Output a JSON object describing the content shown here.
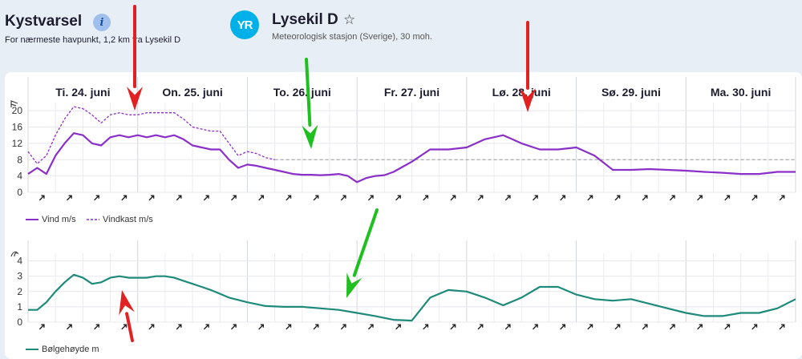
{
  "header": {
    "title": "Kystvarsel",
    "subtitle": "For nærmeste havpunkt, 1,2 km fra Lysekil D",
    "station_name": "Lysekil D",
    "station_desc": "Meteorologisk stasjon (Sverige), 30 moh.",
    "logo_text": "YR",
    "info_icon": "info-icon",
    "star_icon": "star-icon"
  },
  "days": [
    "Ti. 24. juni",
    "On. 25. juni",
    "To. 26. juni",
    "Fr. 27. juni",
    "Lø. 28. juni",
    "Sø. 29. juni",
    "Ma. 30. juni"
  ],
  "chart_data": [
    {
      "type": "line",
      "unit_icon": "wind-flag-icon",
      "ylim": [
        0,
        22
      ],
      "y_ticks": [
        0,
        4,
        8,
        12,
        16,
        20
      ],
      "grid": true,
      "legend_position": "bottom-left",
      "reference_line": 8,
      "x_range_hours": [
        0,
        168
      ],
      "series": [
        {
          "name": "Vind m/s",
          "color": "#8b2fc9",
          "style": "solid",
          "x": [
            0,
            2,
            4,
            6,
            8,
            10,
            12,
            14,
            16,
            18,
            20,
            22,
            24,
            26,
            28,
            30,
            32,
            34,
            36,
            38,
            40,
            42,
            44,
            46,
            48,
            50,
            52,
            54,
            56,
            58,
            60,
            62,
            64,
            66,
            68,
            70,
            72,
            74,
            76,
            78,
            80,
            84,
            88,
            92,
            96,
            100,
            104,
            108,
            112,
            116,
            120,
            124,
            128,
            132,
            136,
            140,
            144,
            148,
            152,
            156,
            160,
            164,
            168
          ],
          "y": [
            4.5,
            6,
            4.5,
            9,
            12,
            14.5,
            14,
            12,
            11.5,
            13.5,
            14,
            13.5,
            14,
            13.5,
            14,
            13.5,
            14,
            13,
            11.5,
            11,
            10.5,
            10.5,
            8,
            6,
            6.8,
            6.5,
            6,
            5.5,
            5,
            4.5,
            4.3,
            4.3,
            4.2,
            4.3,
            4.5,
            4,
            2.5,
            3.5,
            4,
            4.2,
            5,
            7.5,
            10.5,
            10.5,
            11,
            13,
            14,
            12,
            10.5,
            10.5,
            11,
            9,
            5.5,
            5.5,
            5.7,
            5.5,
            5.3,
            5,
            4.8,
            4.5,
            4.5,
            5,
            5
          ]
        },
        {
          "name": "Vindkast m/s",
          "color": "#8b2fc9",
          "style": "dashed",
          "x": [
            0,
            2,
            4,
            6,
            8,
            10,
            12,
            14,
            16,
            18,
            20,
            22,
            24,
            26,
            28,
            30,
            32,
            34,
            36,
            38,
            40,
            42,
            44,
            46,
            48,
            50,
            52,
            54
          ],
          "y": [
            10,
            7,
            9,
            14,
            18,
            21,
            20.5,
            19,
            17,
            19,
            19.5,
            19,
            19,
            19.5,
            19.5,
            19.5,
            19.5,
            18,
            16,
            15.5,
            15,
            15,
            12,
            9,
            10,
            9.5,
            8.5,
            8
          ]
        }
      ]
    },
    {
      "type": "line",
      "unit_icon": "wave-icon",
      "ylim": [
        0,
        4.5
      ],
      "y_ticks": [
        0,
        1,
        2,
        3,
        4
      ],
      "grid": true,
      "legend_position": "bottom-left",
      "x_range_hours": [
        0,
        168
      ],
      "series": [
        {
          "name": "Bølgehøyde m",
          "color": "#1e8a7a",
          "style": "solid",
          "x": [
            0,
            2,
            4,
            6,
            8,
            10,
            12,
            14,
            16,
            18,
            20,
            22,
            24,
            26,
            28,
            30,
            32,
            34,
            36,
            38,
            40,
            44,
            48,
            52,
            56,
            60,
            64,
            68,
            72,
            76,
            80,
            84,
            88,
            92,
            96,
            100,
            104,
            108,
            112,
            116,
            120,
            124,
            128,
            132,
            136,
            140,
            144,
            148,
            152,
            156,
            160,
            164,
            168
          ],
          "y": [
            0.8,
            0.8,
            1.3,
            2,
            2.6,
            3.1,
            2.9,
            2.5,
            2.6,
            2.9,
            3,
            2.9,
            2.9,
            2.9,
            3,
            3,
            2.9,
            2.7,
            2.5,
            2.3,
            2.1,
            1.6,
            1.3,
            1.05,
            1,
            1,
            0.9,
            0.8,
            0.6,
            0.4,
            0.15,
            0.1,
            1.6,
            2.1,
            2,
            1.6,
            1.1,
            1.6,
            2.3,
            2.3,
            1.8,
            1.5,
            1.4,
            1.5,
            1.2,
            0.9,
            0.6,
            0.4,
            0.4,
            0.6,
            0.6,
            0.9,
            1.5
          ]
        }
      ]
    }
  ],
  "legend": {
    "wind": "Vind m/s",
    "gust": "Vindkast m/s",
    "wave": "Bølgehøyde m"
  },
  "annotations": [
    {
      "type": "arrow",
      "color": "#e22222",
      "icon": "red-arrow-icon"
    },
    {
      "type": "arrow",
      "color": "#e22222",
      "icon": "red-arrow-icon"
    },
    {
      "type": "arrow",
      "color": "#e22222",
      "icon": "red-arrow-icon"
    },
    {
      "type": "arrow",
      "color": "#1fbf1f",
      "icon": "green-arrow-icon"
    },
    {
      "type": "arrow",
      "color": "#1fbf1f",
      "icon": "green-arrow-icon"
    }
  ]
}
